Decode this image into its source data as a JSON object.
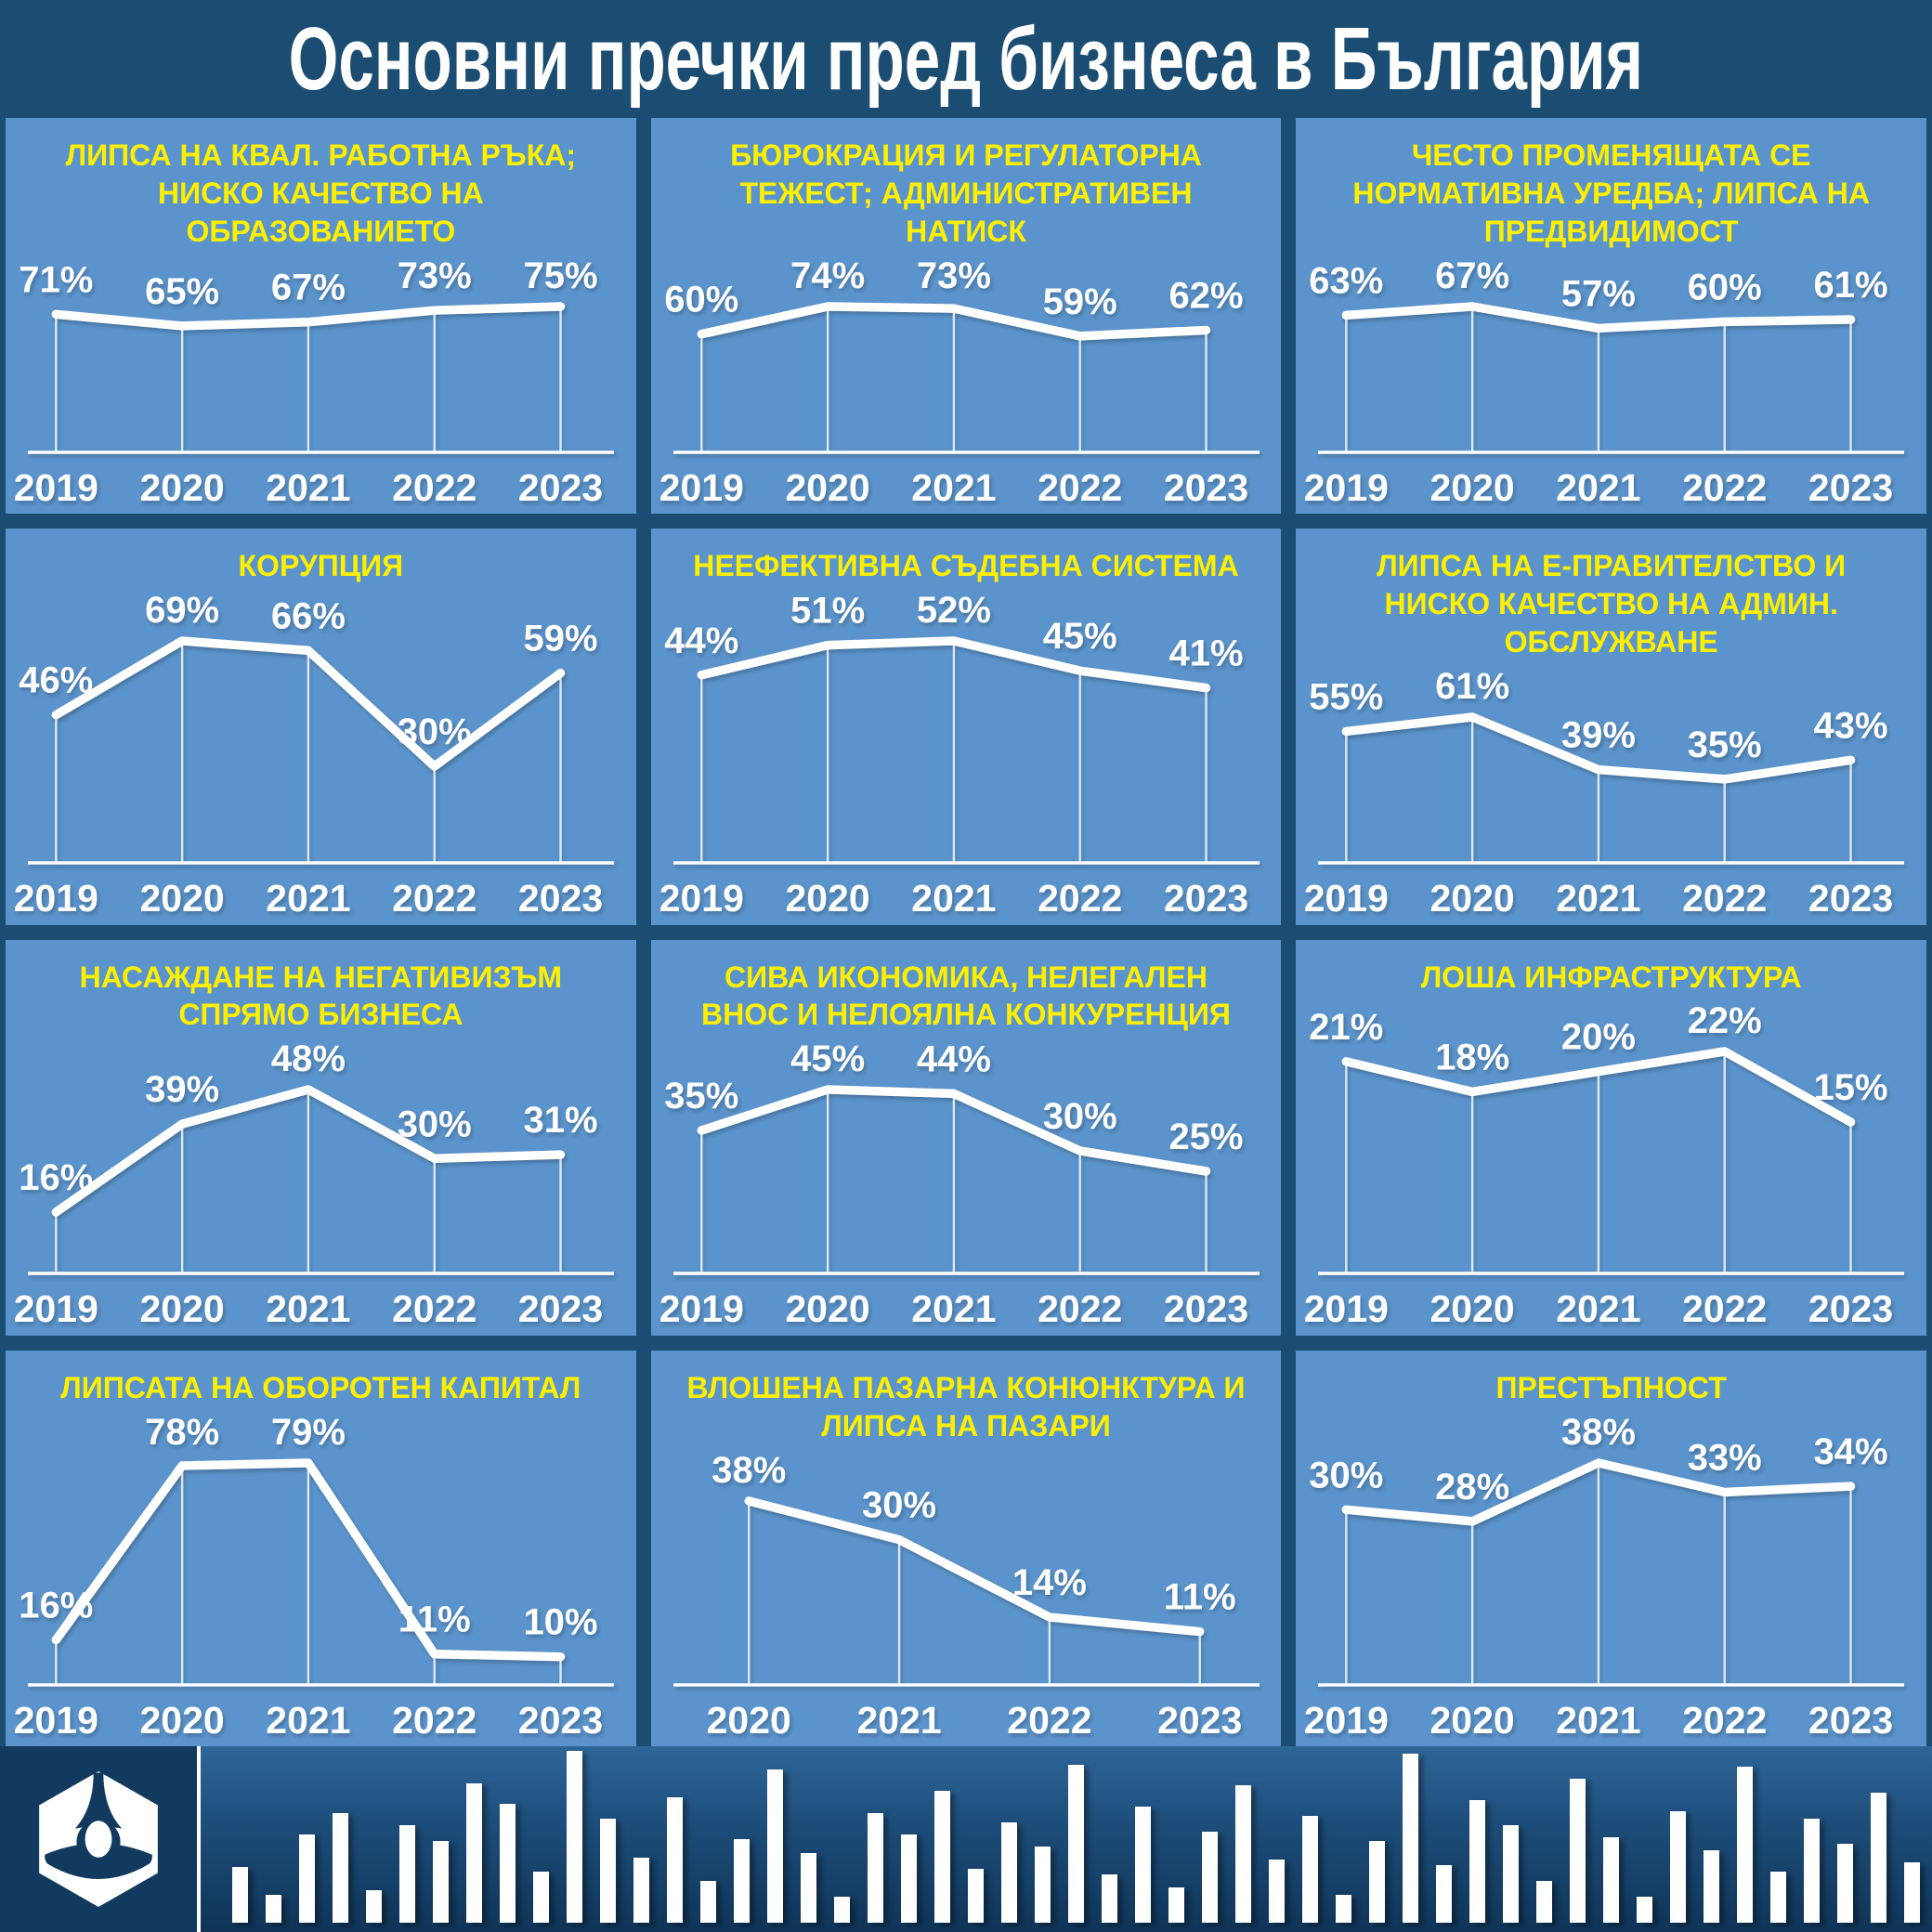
{
  "page_title": "Основни пречки пред бизнеса в България",
  "colors": {
    "background_dark": "#1b4c72",
    "panel_blue": "#5b94cc",
    "title_yellow": "#fcf000",
    "line_white": "#ffffff",
    "footer_top": "#2e6698",
    "footer_bottom": "#0f3457",
    "logo_box": "#123a5e"
  },
  "value_suffix": "%",
  "chart_data": [
    {
      "type": "line",
      "title": "ЛИПСА НА КВАЛ. РАБОТНА РЪКА; НИСКО КАЧЕСТВО НА ОБРАЗОВАНИЕТО",
      "categories": [
        "2019",
        "2020",
        "2021",
        "2022",
        "2023"
      ],
      "values": [
        71,
        65,
        67,
        73,
        75
      ],
      "ylim": [
        0,
        75
      ],
      "grid": false,
      "legend": "none"
    },
    {
      "type": "line",
      "title": "БЮРОКРАЦИЯ И РЕГУЛАТОРНА ТЕЖЕСТ; АДМИНИСТРАТИВЕН НАТИСК",
      "categories": [
        "2019",
        "2020",
        "2021",
        "2022",
        "2023"
      ],
      "values": [
        60,
        74,
        73,
        59,
        62
      ],
      "ylim": [
        0,
        74
      ],
      "grid": false,
      "legend": "none"
    },
    {
      "type": "line",
      "title": "ЧЕСТО ПРОМЕНЯЩАТА СЕ НОРМАТИВНА УРЕДБА; ЛИПСА НА ПРЕДВИДИМОСТ",
      "categories": [
        "2019",
        "2020",
        "2021",
        "2022",
        "2023"
      ],
      "values": [
        63,
        67,
        57,
        60,
        61
      ],
      "ylim": [
        0,
        67
      ],
      "grid": false,
      "legend": "none"
    },
    {
      "type": "line",
      "title": "КОРУПЦИЯ",
      "categories": [
        "2019",
        "2020",
        "2021",
        "2022",
        "2023"
      ],
      "values": [
        46,
        69,
        66,
        30,
        59
      ],
      "ylim": [
        0,
        69
      ],
      "grid": false,
      "legend": "none"
    },
    {
      "type": "line",
      "title": "НЕЕФЕКТИВНА СЪДЕБНА СИСТЕМА",
      "categories": [
        "2019",
        "2020",
        "2021",
        "2022",
        "2023"
      ],
      "values": [
        44,
        51,
        52,
        45,
        41
      ],
      "ylim": [
        0,
        52
      ],
      "grid": false,
      "legend": "none"
    },
    {
      "type": "line",
      "title": "ЛИПСА НА Е-ПРАВИТЕЛСТВО И НИСКО КАЧЕСТВО НА АДМИН. ОБСЛУЖВАНЕ",
      "categories": [
        "2019",
        "2020",
        "2021",
        "2022",
        "2023"
      ],
      "values": [
        55,
        61,
        39,
        35,
        43
      ],
      "ylim": [
        0,
        61
      ],
      "grid": false,
      "legend": "none"
    },
    {
      "type": "line",
      "title": "НАСАЖДАНЕ НА НЕГАТИВИЗЪМ СПРЯМО БИЗНЕСА",
      "categories": [
        "2019",
        "2020",
        "2021",
        "2022",
        "2023"
      ],
      "values": [
        16,
        39,
        48,
        30,
        31
      ],
      "ylim": [
        0,
        48
      ],
      "grid": false,
      "legend": "none"
    },
    {
      "type": "line",
      "title": "СИВА ИКОНОМИКА, НЕЛЕГАЛЕН ВНОС И НЕЛОЯЛНА КОНКУРЕНЦИЯ",
      "categories": [
        "2019",
        "2020",
        "2021",
        "2022",
        "2023"
      ],
      "values": [
        35,
        45,
        44,
        30,
        25
      ],
      "ylim": [
        0,
        45
      ],
      "grid": false,
      "legend": "none"
    },
    {
      "type": "line",
      "title": "ЛОША ИНФРАСТРУКТУРА",
      "categories": [
        "2019",
        "2020",
        "2021",
        "2022",
        "2023"
      ],
      "values": [
        21,
        18,
        20,
        22,
        15
      ],
      "ylim": [
        0,
        22
      ],
      "grid": false,
      "legend": "none"
    },
    {
      "type": "line",
      "title": "ЛИПСАТА НА ОБОРОТЕН КАПИТАЛ",
      "categories": [
        "2019",
        "2020",
        "2021",
        "2022",
        "2023"
      ],
      "values": [
        16,
        78,
        79,
        11,
        10
      ],
      "ylim": [
        0,
        79
      ],
      "grid": false,
      "legend": "none"
    },
    {
      "type": "line",
      "title": "ВЛОШЕНА ПАЗАРНА КОНЮНКТУРА И ЛИПСА НА ПАЗАРИ",
      "categories": [
        "2020",
        "2021",
        "2022",
        "2023"
      ],
      "values": [
        38,
        30,
        14,
        11
      ],
      "ylim": [
        0,
        38
      ],
      "grid": false,
      "legend": "none"
    },
    {
      "type": "line",
      "title": "ПРЕСТЪПНОСТ",
      "categories": [
        "2019",
        "2020",
        "2021",
        "2022",
        "2023"
      ],
      "values": [
        30,
        28,
        38,
        33,
        34
      ],
      "ylim": [
        0,
        38
      ],
      "grid": false,
      "legend": "none"
    }
  ],
  "footer": {
    "logo_name": "bia-hexagon-logo",
    "equalizer_bars": [
      60,
      30,
      95,
      118,
      35,
      105,
      88,
      150,
      128,
      55,
      185,
      112,
      70,
      135,
      45,
      90,
      165,
      75,
      28,
      118,
      95,
      142,
      58,
      108,
      82,
      170,
      52,
      125,
      38,
      98,
      148,
      68,
      115,
      30,
      88,
      182,
      62,
      132,
      105,
      45,
      155,
      92,
      28,
      120,
      78,
      168,
      55,
      112,
      85,
      140,
      65
    ]
  }
}
